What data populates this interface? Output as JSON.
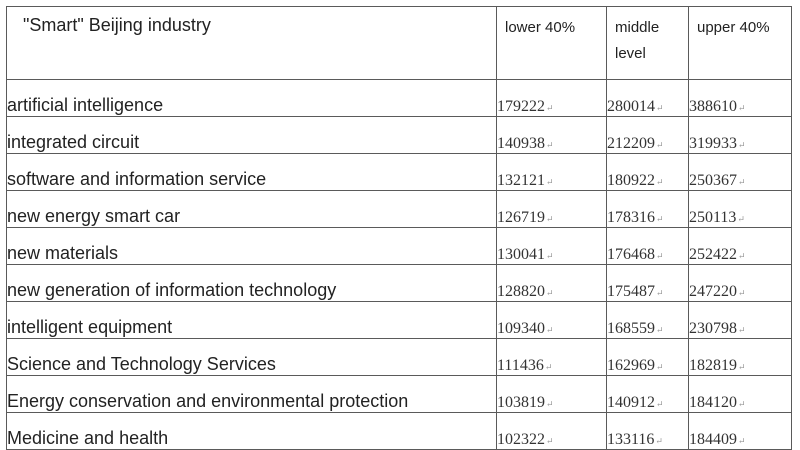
{
  "table": {
    "headers": [
      "\"Smart\" Beijing industry",
      "lower 40%",
      "middle level",
      "upper 40%"
    ],
    "rows": [
      {
        "industry": "artificial intelligence",
        "lower": "179222",
        "middle": "280014",
        "upper": "388610"
      },
      {
        "industry": "integrated circuit",
        "lower": "140938",
        "middle": "212209",
        "upper": "319933"
      },
      {
        "industry": "software and information service",
        "lower": "132121",
        "middle": "180922",
        "upper": "250367"
      },
      {
        "industry": "new energy smart car",
        "lower": "126719",
        "middle": "178316",
        "upper": "250113"
      },
      {
        "industry": "new materials",
        "lower": "130041",
        "middle": "176468",
        "upper": "252422"
      },
      {
        "industry": "new generation of information technology",
        "lower": "128820",
        "middle": "175487",
        "upper": "247220"
      },
      {
        "industry": "intelligent equipment",
        "lower": "109340",
        "middle": "168559",
        "upper": "230798"
      },
      {
        "industry": "Science and Technology Services",
        "lower": "111436",
        "middle": "162969",
        "upper": "182819"
      },
      {
        "industry": "Energy conservation and environmental protection",
        "lower": "103819",
        "middle": "140912",
        "upper": "184120"
      },
      {
        "industry": "Medicine and health",
        "lower": "102322",
        "middle": "133116",
        "upper": "184409"
      }
    ]
  }
}
